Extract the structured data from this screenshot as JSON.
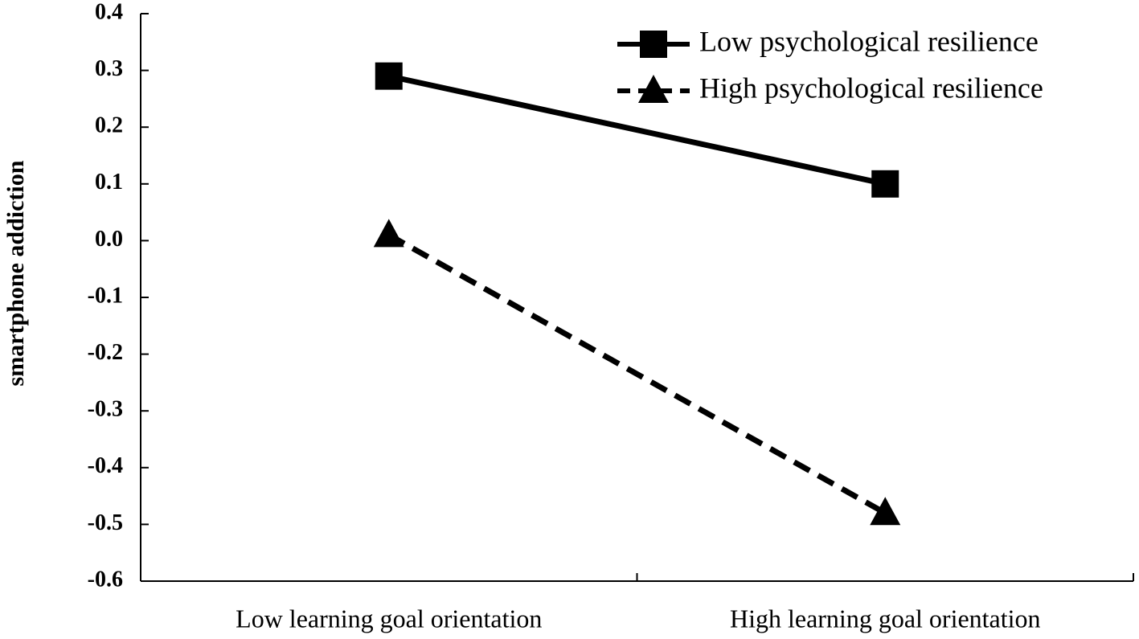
{
  "chart_data": {
    "type": "line",
    "y_label": "smartphone addiction",
    "categories": [
      "Low learning goal orientation",
      "High learning goal orientation"
    ],
    "series": [
      {
        "name": "Low psychological resilience",
        "color": "#000000",
        "line_style": "solid",
        "marker": "square",
        "values": [
          0.29,
          0.1
        ]
      },
      {
        "name": "High psychological resilience",
        "color": "#000000",
        "line_style": "dashed",
        "marker": "triangle",
        "values": [
          0.01,
          -0.48
        ]
      }
    ],
    "ylim": [
      -0.6,
      0.4
    ],
    "yticks": [
      -0.6,
      -0.5,
      -0.4,
      -0.3,
      -0.2,
      -0.1,
      {
        "value": 0,
        "label": "0.0"
      },
      0.1,
      0.2,
      0.3,
      0.4
    ],
    "grid": false,
    "legend": "upper right"
  }
}
